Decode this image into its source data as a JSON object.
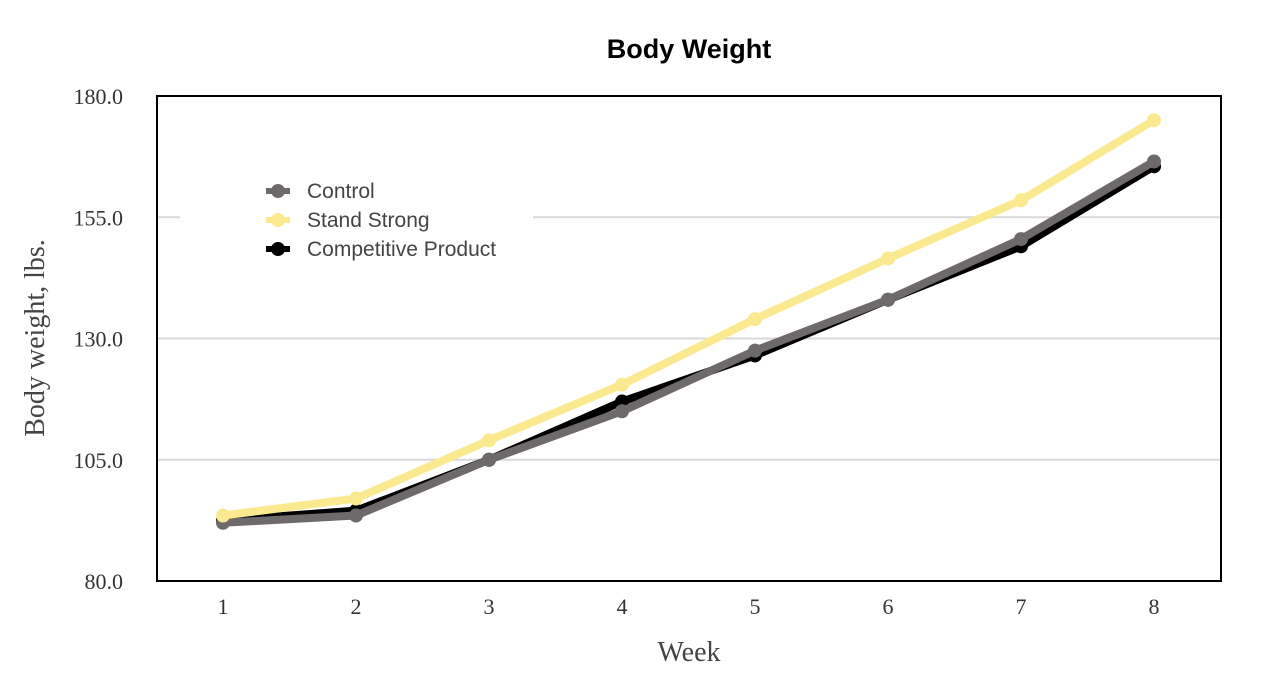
{
  "chart_data": {
    "type": "line",
    "title": "Body Weight",
    "xlabel": "Week",
    "ylabel": "Body weight, lbs.",
    "x": [
      "1",
      "2",
      "3",
      "4",
      "5",
      "6",
      "7",
      "8"
    ],
    "yticks": [
      "80.0",
      "105.0",
      "130.0",
      "155.0",
      "180.0"
    ],
    "ylim": [
      80,
      180
    ],
    "grid": true,
    "legend_position": "top-left",
    "series": [
      {
        "name": "Competitive Product",
        "color": "#000000",
        "values": [
          92.5,
          94.5,
          105,
          117,
          126.5,
          138,
          149,
          165.5
        ]
      },
      {
        "name": "Control",
        "color": "#6e6a6b",
        "values": [
          92,
          93.5,
          105,
          115,
          127.5,
          138,
          150.5,
          166.5
        ]
      },
      {
        "name": "Stand Strong",
        "color": "#fbe98f",
        "values": [
          93.5,
          97,
          109,
          120.5,
          134,
          146.5,
          158.5,
          175
        ]
      }
    ],
    "legend_order": [
      "Control",
      "Stand Strong",
      "Competitive Product"
    ]
  }
}
